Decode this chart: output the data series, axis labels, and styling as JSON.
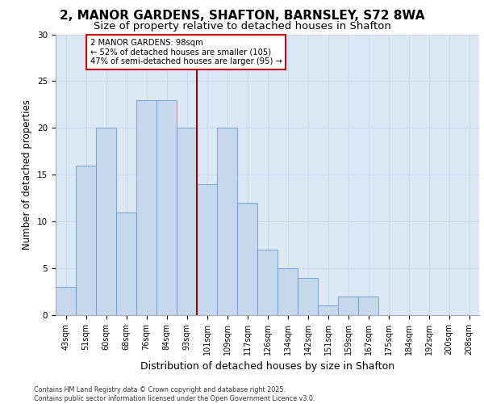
{
  "title_line1": "2, MANOR GARDENS, SHAFTON, BARNSLEY, S72 8WA",
  "title_line2": "Size of property relative to detached houses in Shafton",
  "xlabel": "Distribution of detached houses by size in Shafton",
  "ylabel": "Number of detached properties",
  "categories": [
    "43sqm",
    "51sqm",
    "60sqm",
    "68sqm",
    "76sqm",
    "84sqm",
    "93sqm",
    "101sqm",
    "109sqm",
    "117sqm",
    "126sqm",
    "134sqm",
    "142sqm",
    "151sqm",
    "159sqm",
    "167sqm",
    "175sqm",
    "184sqm",
    "192sqm",
    "200sqm",
    "208sqm"
  ],
  "values": [
    3,
    16,
    20,
    11,
    23,
    23,
    20,
    14,
    20,
    12,
    7,
    5,
    4,
    1,
    2,
    2,
    0,
    0,
    0,
    0,
    0
  ],
  "bar_color": "#c5d8ee",
  "bar_edge_color": "#6699cc",
  "vline_color": "#990000",
  "annotation_text": "2 MANOR GARDENS: 98sqm\n← 52% of detached houses are smaller (105)\n47% of semi-detached houses are larger (95) →",
  "annotation_box_color": "#ffffff",
  "annotation_box_edge_color": "#cc0000",
  "ylim": [
    0,
    30
  ],
  "yticks": [
    0,
    5,
    10,
    15,
    20,
    25,
    30
  ],
  "grid_color": "#c8d8ec",
  "background_color": "#dce8f5",
  "footer_text": "Contains HM Land Registry data © Crown copyright and database right 2025.\nContains public sector information licensed under the Open Government Licence v3.0."
}
